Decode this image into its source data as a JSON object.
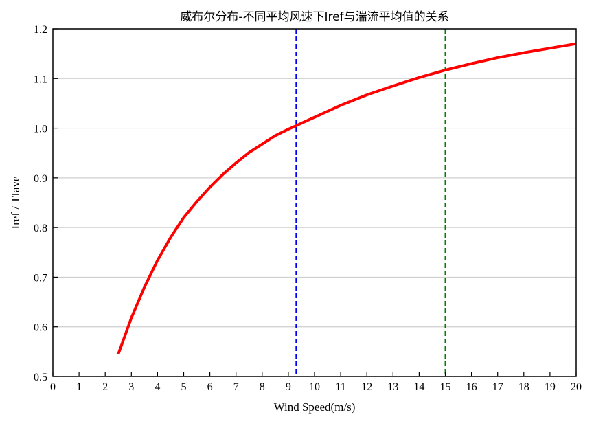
{
  "chart_data": {
    "type": "line",
    "title": "威布尔分布-不同平均风速下Iref与湍流平均值的关系",
    "xlabel": "Wind Speed(m/s)",
    "ylabel": "Iref / TIave",
    "xlim": [
      0,
      20
    ],
    "ylim": [
      0.5,
      1.2
    ],
    "xticks": [
      "0",
      "1",
      "2",
      "3",
      "4",
      "5",
      "6",
      "7",
      "8",
      "9",
      "10",
      "11",
      "12",
      "13",
      "14",
      "15",
      "16",
      "17",
      "18",
      "19",
      "20"
    ],
    "yticks": [
      "0.5",
      "0.6",
      "0.7",
      "0.8",
      "0.9",
      "1.0",
      "1.1",
      "1.2"
    ],
    "grid": "horizontal",
    "series": [
      {
        "color": "#ff0000",
        "x": [
          2.5,
          3,
          3.5,
          4,
          4.5,
          5,
          5.5,
          6,
          6.5,
          7,
          7.5,
          8,
          8.5,
          9,
          9.3,
          9.5,
          10,
          11,
          12,
          13,
          14,
          15,
          16,
          17,
          18,
          19,
          20
        ],
        "y": [
          0.545,
          0.618,
          0.68,
          0.734,
          0.78,
          0.82,
          0.852,
          0.881,
          0.907,
          0.93,
          0.951,
          0.968,
          0.985,
          0.998,
          1.005,
          1.01,
          1.022,
          1.046,
          1.067,
          1.085,
          1.102,
          1.117,
          1.13,
          1.142,
          1.152,
          1.161,
          1.17
        ]
      }
    ],
    "vlines": [
      {
        "x": 9.3,
        "color": "#0000ff",
        "style": "dashed"
      },
      {
        "x": 15,
        "color": "#008000",
        "style": "dashed"
      }
    ]
  }
}
